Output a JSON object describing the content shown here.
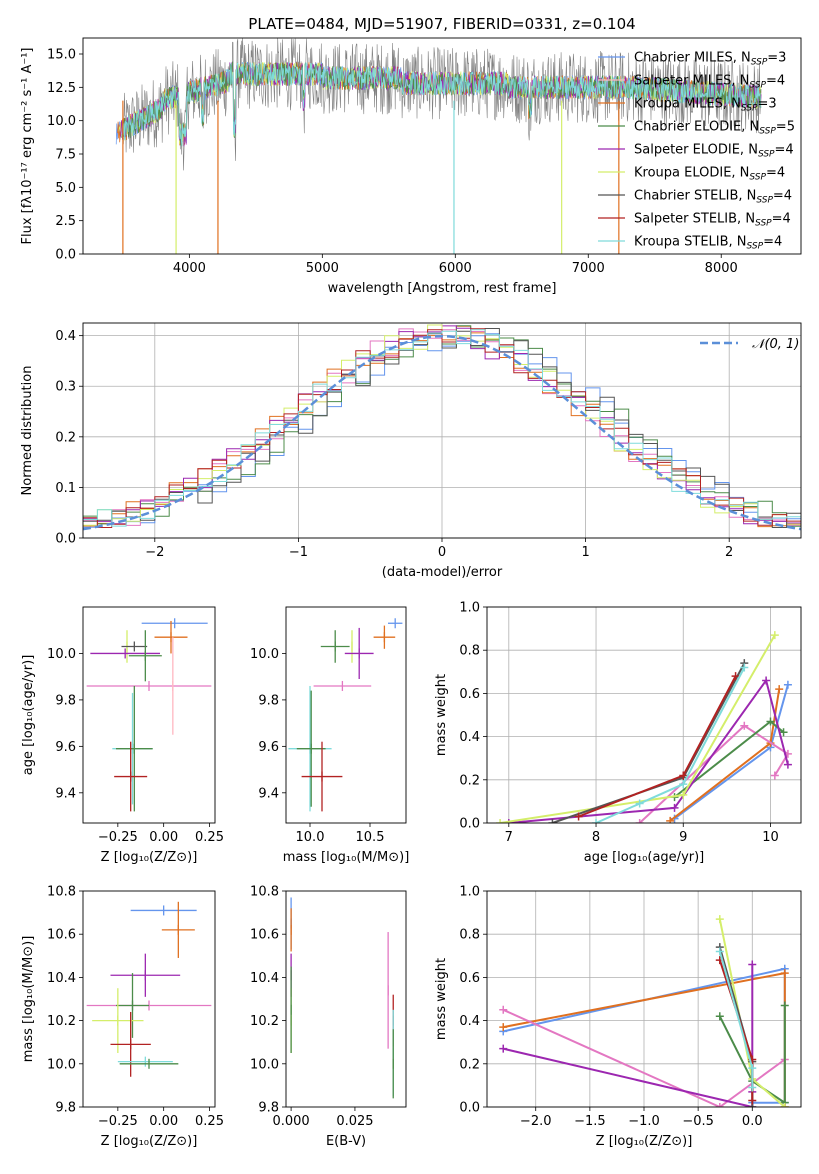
{
  "figure": {
    "title": "PLATE=0484, MJD=51907, FIBERID=0331, z=0.104"
  },
  "colors": {
    "chabrier_miles": "#6495ED",
    "salpeter_miles": "#FFB6C1",
    "kroupa_miles": "#E07020",
    "chabrier_elodie": "#4C8C4A",
    "salpeter_elodie": "#9C27B0",
    "kroupa_elodie": "#D4EE6A",
    "chabrier_stelib": "#555555",
    "salpeter_stelib": "#B22222",
    "kroupa_stelib": "#7FDBDB",
    "gauss": "#5B8FD8",
    "pink": "#E377C2",
    "grey": "#808080"
  },
  "chart_data": [
    {
      "id": "spectrum",
      "type": "line",
      "xlabel": "wavelength [Angstrom, rest frame]",
      "ylabel": "Flux [fλ10⁻¹⁷ erg cm⁻² s⁻¹ A⁻¹]",
      "xlim": [
        3200,
        8600
      ],
      "ylim": [
        0,
        16.2
      ],
      "xticks": [
        4000,
        5000,
        6000,
        7000,
        8000
      ],
      "yticks": [
        0.0,
        2.5,
        5.0,
        7.5,
        10.0,
        12.5,
        15.0
      ],
      "legend_position": "right",
      "legend": [
        {
          "label": "Chabrier MILES, N",
          "sub": "SSP",
          "suffix": "=3",
          "color": "#6495ED"
        },
        {
          "label": "Salpeter MILES, N",
          "sub": "SSP",
          "suffix": "=4",
          "color": "#FFB6C1"
        },
        {
          "label": "Kroupa MILES, N",
          "sub": "SSP",
          "suffix": "=3",
          "color": "#E07020"
        },
        {
          "label": "Chabrier ELODIE, N",
          "sub": "SSP",
          "suffix": "=5",
          "color": "#4C8C4A"
        },
        {
          "label": "Salpeter ELODIE, N",
          "sub": "SSP",
          "suffix": "=4",
          "color": "#9C27B0"
        },
        {
          "label": "Kroupa ELODIE, N",
          "sub": "SSP",
          "suffix": "=4",
          "color": "#D4EE6A"
        },
        {
          "label": "Chabrier STELIB, N",
          "sub": "SSP",
          "suffix": "=4",
          "color": "#555555"
        },
        {
          "label": "Salpeter STELIB, N",
          "sub": "SSP",
          "suffix": "=4",
          "color": "#B22222"
        },
        {
          "label": "Kroupa STELIB, N",
          "sub": "SSP",
          "suffix": "=4",
          "color": "#7FDBDB"
        }
      ],
      "spikes": [
        {
          "x": 3500,
          "y": 0,
          "color": "#E07020"
        },
        {
          "x": 3900,
          "y": 0,
          "color": "#D4EE6A"
        },
        {
          "x": 4215,
          "y": 0,
          "color": "#E07020"
        },
        {
          "x": 5990,
          "y": 0,
          "color": "#7FDBDB"
        },
        {
          "x": 6800,
          "y": 0,
          "color": "#D4EE6A"
        },
        {
          "x": 7230,
          "y": 0,
          "color": "#E07020"
        }
      ]
    },
    {
      "id": "residuals",
      "type": "step",
      "xlabel": "(data-model)/error",
      "ylabel": "Normed distribution",
      "xlim": [
        -2.5,
        2.5
      ],
      "ylim": [
        0,
        0.425
      ],
      "xticks": [
        -2,
        -1,
        0,
        1,
        2
      ],
      "yticks": [
        0.0,
        0.1,
        0.2,
        0.3,
        0.4
      ],
      "grid": true,
      "legend": [
        {
          "label": "𝒩(0, 1)",
          "color": "#5B8FD8",
          "style": "dashed"
        }
      ],
      "legend_position": "top-right"
    },
    {
      "id": "age_vs_Z",
      "type": "errorbar",
      "xlabel": "Z [log₁₀(Z/Z⊙)]",
      "ylabel": "age  [log₁₀(age/yr)]",
      "xlim": [
        -0.44,
        0.28
      ],
      "ylim": [
        9.27,
        10.2
      ],
      "xticks": [
        -0.25,
        0.0,
        0.25
      ],
      "yticks": [
        9.4,
        9.6,
        9.8,
        10.0
      ],
      "points": [
        {
          "x": 0.06,
          "y": 10.13,
          "xerr": 0.18,
          "yerr": 0.0,
          "color": "#6495ED"
        },
        {
          "x": 0.04,
          "y": 10.07,
          "xerr": 0.09,
          "yerr": 0.07,
          "color": "#E07020"
        },
        {
          "x": -0.2,
          "y": 10.03,
          "xerr": 0.0,
          "yerr": 0.07,
          "color": "#D4EE6A"
        },
        {
          "x": -0.16,
          "y": 10.03,
          "xerr": 0.07,
          "yerr": 0.0,
          "color": "#555555"
        },
        {
          "x": -0.21,
          "y": 10.0,
          "xerr": 0.19,
          "yerr": 0.0,
          "color": "#9C27B0"
        },
        {
          "x": -0.1,
          "y": 9.99,
          "xerr": 0.09,
          "yerr": 0.11,
          "color": "#4C8C4A"
        },
        {
          "x": -0.08,
          "y": 9.86,
          "xerr": 0.34,
          "yerr": 0.0,
          "color": "#E377C2"
        },
        {
          "x": 0.05,
          "y": 9.86,
          "xerr": 0.0,
          "yerr": 0.21,
          "color": "#FFB6C1"
        },
        {
          "x": -0.17,
          "y": 9.59,
          "xerr": 0.11,
          "yerr": 0.24,
          "color": "#7FDBDB"
        },
        {
          "x": -0.16,
          "y": 9.59,
          "xerr": 0.1,
          "yerr": 0.27,
          "color": "#4C8C4A"
        },
        {
          "x": -0.18,
          "y": 9.47,
          "xerr": 0.09,
          "yerr": 0.15,
          "color": "#B22222"
        }
      ]
    },
    {
      "id": "age_vs_mass",
      "type": "errorbar",
      "xlabel": "mass [log₁₀(M/M⊙)]",
      "ylabel": "",
      "xlim": [
        9.8,
        10.8
      ],
      "ylim": [
        9.27,
        10.2
      ],
      "xticks": [
        10.0,
        10.5
      ],
      "yticks": [
        9.4,
        9.6,
        9.8,
        10.0
      ],
      "points": [
        {
          "x": 10.71,
          "y": 10.13,
          "xerr": 0.06,
          "yerr": 0.0,
          "color": "#6495ED"
        },
        {
          "x": 10.62,
          "y": 10.07,
          "xerr": 0.09,
          "yerr": 0.05,
          "color": "#E07020"
        },
        {
          "x": 10.21,
          "y": 10.03,
          "xerr": 0.12,
          "yerr": 0.07,
          "color": "#4C8C4A"
        },
        {
          "x": 10.35,
          "y": 10.03,
          "xerr": 0.0,
          "yerr": 0.07,
          "color": "#D4EE6A"
        },
        {
          "x": 10.41,
          "y": 10.0,
          "xerr": 0.12,
          "yerr": 0.11,
          "color": "#9C27B0"
        },
        {
          "x": 10.27,
          "y": 9.86,
          "xerr": 0.24,
          "yerr": 0.0,
          "color": "#E377C2"
        },
        {
          "x": 10.0,
          "y": 9.59,
          "xerr": 0.18,
          "yerr": 0.27,
          "color": "#7FDBDB"
        },
        {
          "x": 10.01,
          "y": 9.59,
          "xerr": 0.12,
          "yerr": 0.25,
          "color": "#4C8C4A"
        },
        {
          "x": 10.1,
          "y": 9.47,
          "xerr": 0.17,
          "yerr": 0.15,
          "color": "#B22222"
        }
      ]
    },
    {
      "id": "mass_weight_vs_age",
      "type": "line",
      "xlabel": "age  [log₁₀(age/yr)]",
      "ylabel": "mass weight",
      "xlim": [
        6.75,
        10.35
      ],
      "ylim": [
        0,
        1.0
      ],
      "xticks": [
        7,
        8,
        9,
        10
      ],
      "yticks": [
        0.0,
        0.2,
        0.4,
        0.6,
        0.8,
        1.0
      ],
      "grid": true,
      "series": [
        {
          "color": "#6495ED",
          "points": [
            [
              8.9,
              0.02
            ],
            [
              10.0,
              0.35
            ],
            [
              10.2,
              0.64
            ]
          ]
        },
        {
          "color": "#E07020",
          "points": [
            [
              8.85,
              0.01
            ],
            [
              10.0,
              0.37
            ],
            [
              10.1,
              0.62
            ]
          ]
        },
        {
          "color": "#E377C2",
          "points": [
            [
              8.5,
              0.0
            ],
            [
              9.7,
              0.45
            ],
            [
              10.2,
              0.32
            ],
            [
              10.05,
              0.22
            ]
          ]
        },
        {
          "color": "#4C8C4A",
          "points": [
            [
              8.9,
              0.12
            ],
            [
              10.0,
              0.47
            ],
            [
              10.15,
              0.42
            ]
          ]
        },
        {
          "color": "#9C27B0",
          "points": [
            [
              7.0,
              0.0
            ],
            [
              8.9,
              0.07
            ],
            [
              9.95,
              0.66
            ],
            [
              10.2,
              0.27
            ]
          ]
        },
        {
          "color": "#D4EE6A",
          "points": [
            [
              6.9,
              0.0
            ],
            [
              9.0,
              0.13
            ],
            [
              10.05,
              0.87
            ]
          ]
        },
        {
          "color": "#555555",
          "points": [
            [
              7.5,
              0.0
            ],
            [
              9.0,
              0.21
            ],
            [
              9.7,
              0.74
            ]
          ]
        },
        {
          "color": "#B22222",
          "points": [
            [
              7.8,
              0.03
            ],
            [
              9.0,
              0.22
            ],
            [
              9.6,
              0.68
            ]
          ]
        },
        {
          "color": "#7FDBDB",
          "points": [
            [
              8.0,
              0.0
            ],
            [
              8.5,
              0.09
            ],
            [
              9.0,
              0.18
            ],
            [
              9.7,
              0.72
            ]
          ]
        }
      ]
    },
    {
      "id": "mass_vs_Z",
      "type": "errorbar",
      "xlabel": "Z [log₁₀(Z/Z⊙)]",
      "ylabel": "mass [log₁₀(M/M⊙)]",
      "xlim": [
        -0.44,
        0.28
      ],
      "ylim": [
        9.8,
        10.8
      ],
      "xticks": [
        -0.25,
        0.0,
        0.25
      ],
      "yticks": [
        9.8,
        10.0,
        10.2,
        10.4,
        10.6,
        10.8
      ],
      "points": [
        {
          "x": 0.0,
          "y": 10.71,
          "xerr": 0.18,
          "yerr": 0.0,
          "color": "#6495ED"
        },
        {
          "x": 0.08,
          "y": 10.62,
          "xerr": 0.09,
          "yerr": 0.13,
          "color": "#E07020"
        },
        {
          "x": -0.1,
          "y": 10.41,
          "xerr": 0.19,
          "yerr": 0.1,
          "color": "#9C27B0"
        },
        {
          "x": -0.08,
          "y": 10.27,
          "xerr": 0.34,
          "yerr": 0.0,
          "color": "#E377C2"
        },
        {
          "x": -0.17,
          "y": 10.27,
          "xerr": 0.09,
          "yerr": 0.15,
          "color": "#4C8C4A"
        },
        {
          "x": -0.25,
          "y": 10.2,
          "xerr": 0.14,
          "yerr": 0.15,
          "color": "#D4EE6A"
        },
        {
          "x": -0.18,
          "y": 10.09,
          "xerr": 0.11,
          "yerr": 0.15,
          "color": "#B22222"
        },
        {
          "x": -0.1,
          "y": 10.01,
          "xerr": 0.15,
          "yerr": 0.0,
          "color": "#7FDBDB"
        },
        {
          "x": -0.08,
          "y": 10.0,
          "xerr": 0.16,
          "yerr": 0.0,
          "color": "#4C8C4A"
        }
      ]
    },
    {
      "id": "mass_vs_ebv",
      "type": "errorbar",
      "xlabel": "E(B-V)",
      "ylabel": "",
      "xlim": [
        -0.002,
        0.045
      ],
      "ylim": [
        9.8,
        10.8
      ],
      "xticks": [
        0.0,
        0.025
      ],
      "yticks": [
        9.8,
        10.0,
        10.2,
        10.4,
        10.6,
        10.8
      ],
      "points": [
        {
          "x": 0.0,
          "y": 10.65,
          "xerr": 0.0,
          "yerr": 0.12,
          "color": "#6495ED"
        },
        {
          "x": 0.0,
          "y": 10.62,
          "xerr": 0.0,
          "yerr": 0.1,
          "color": "#E07020"
        },
        {
          "x": 0.0,
          "y": 10.41,
          "xerr": 0.0,
          "yerr": 0.1,
          "color": "#9C27B0"
        },
        {
          "x": 0.0,
          "y": 10.2,
          "xerr": 0.0,
          "yerr": 0.15,
          "color": "#D4EE6A"
        },
        {
          "x": 0.0,
          "y": 10.25,
          "xerr": 0.0,
          "yerr": 0.2,
          "color": "#4C8C4A"
        },
        {
          "x": 0.038,
          "y": 10.34,
          "xerr": 0.0,
          "yerr": 0.27,
          "color": "#E377C2"
        },
        {
          "x": 0.04,
          "y": 10.2,
          "xerr": 0.0,
          "yerr": 0.12,
          "color": "#B22222"
        },
        {
          "x": 0.04,
          "y": 10.05,
          "xerr": 0.0,
          "yerr": 0.2,
          "color": "#7FDBDB"
        },
        {
          "x": 0.04,
          "y": 10.0,
          "xerr": 0.0,
          "yerr": 0.16,
          "color": "#4C8C4A"
        }
      ]
    },
    {
      "id": "mass_weight_vs_Z",
      "type": "line",
      "xlabel": "Z [log₁₀(Z/Z⊙)]",
      "ylabel": "mass weight",
      "xlim": [
        -2.45,
        0.45
      ],
      "ylim": [
        0,
        1.0
      ],
      "xticks": [
        -2.0,
        -1.5,
        -1.0,
        -0.5,
        0.0
      ],
      "yticks": [
        0.0,
        0.2,
        0.4,
        0.6,
        0.8,
        1.0
      ],
      "grid": true,
      "series": [
        {
          "color": "#6495ED",
          "points": [
            [
              -2.3,
              0.35
            ],
            [
              0.3,
              0.64
            ],
            [
              0.3,
              0.02
            ],
            [
              0.0,
              0.02
            ]
          ]
        },
        {
          "color": "#E07020",
          "points": [
            [
              -2.3,
              0.37
            ],
            [
              0.3,
              0.62
            ],
            [
              0.3,
              0.0
            ]
          ]
        },
        {
          "color": "#E377C2",
          "points": [
            [
              -2.3,
              0.45
            ],
            [
              -0.3,
              0.0
            ],
            [
              0.3,
              0.22
            ]
          ]
        },
        {
          "color": "#9C27B0",
          "points": [
            [
              -2.3,
              0.27
            ],
            [
              0.0,
              0.0
            ],
            [
              0.0,
              0.66
            ],
            [
              0.0,
              0.07
            ]
          ]
        },
        {
          "color": "#4C8C4A",
          "points": [
            [
              -0.3,
              0.42
            ],
            [
              0.0,
              0.12
            ],
            [
              0.3,
              0.02
            ],
            [
              0.3,
              0.47
            ]
          ]
        },
        {
          "color": "#D4EE6A",
          "points": [
            [
              -0.3,
              0.87
            ],
            [
              0.0,
              0.13
            ],
            [
              0.3,
              0.0
            ]
          ]
        },
        {
          "color": "#555555",
          "points": [
            [
              -0.3,
              0.74
            ],
            [
              0.0,
              0.21
            ],
            [
              0.0,
              0.0
            ]
          ]
        },
        {
          "color": "#B22222",
          "points": [
            [
              -0.3,
              0.68
            ],
            [
              0.0,
              0.22
            ],
            [
              0.0,
              0.03
            ]
          ]
        },
        {
          "color": "#7FDBDB",
          "points": [
            [
              -0.3,
              0.72
            ],
            [
              0.0,
              0.18
            ],
            [
              0.0,
              0.09
            ]
          ]
        }
      ]
    }
  ]
}
